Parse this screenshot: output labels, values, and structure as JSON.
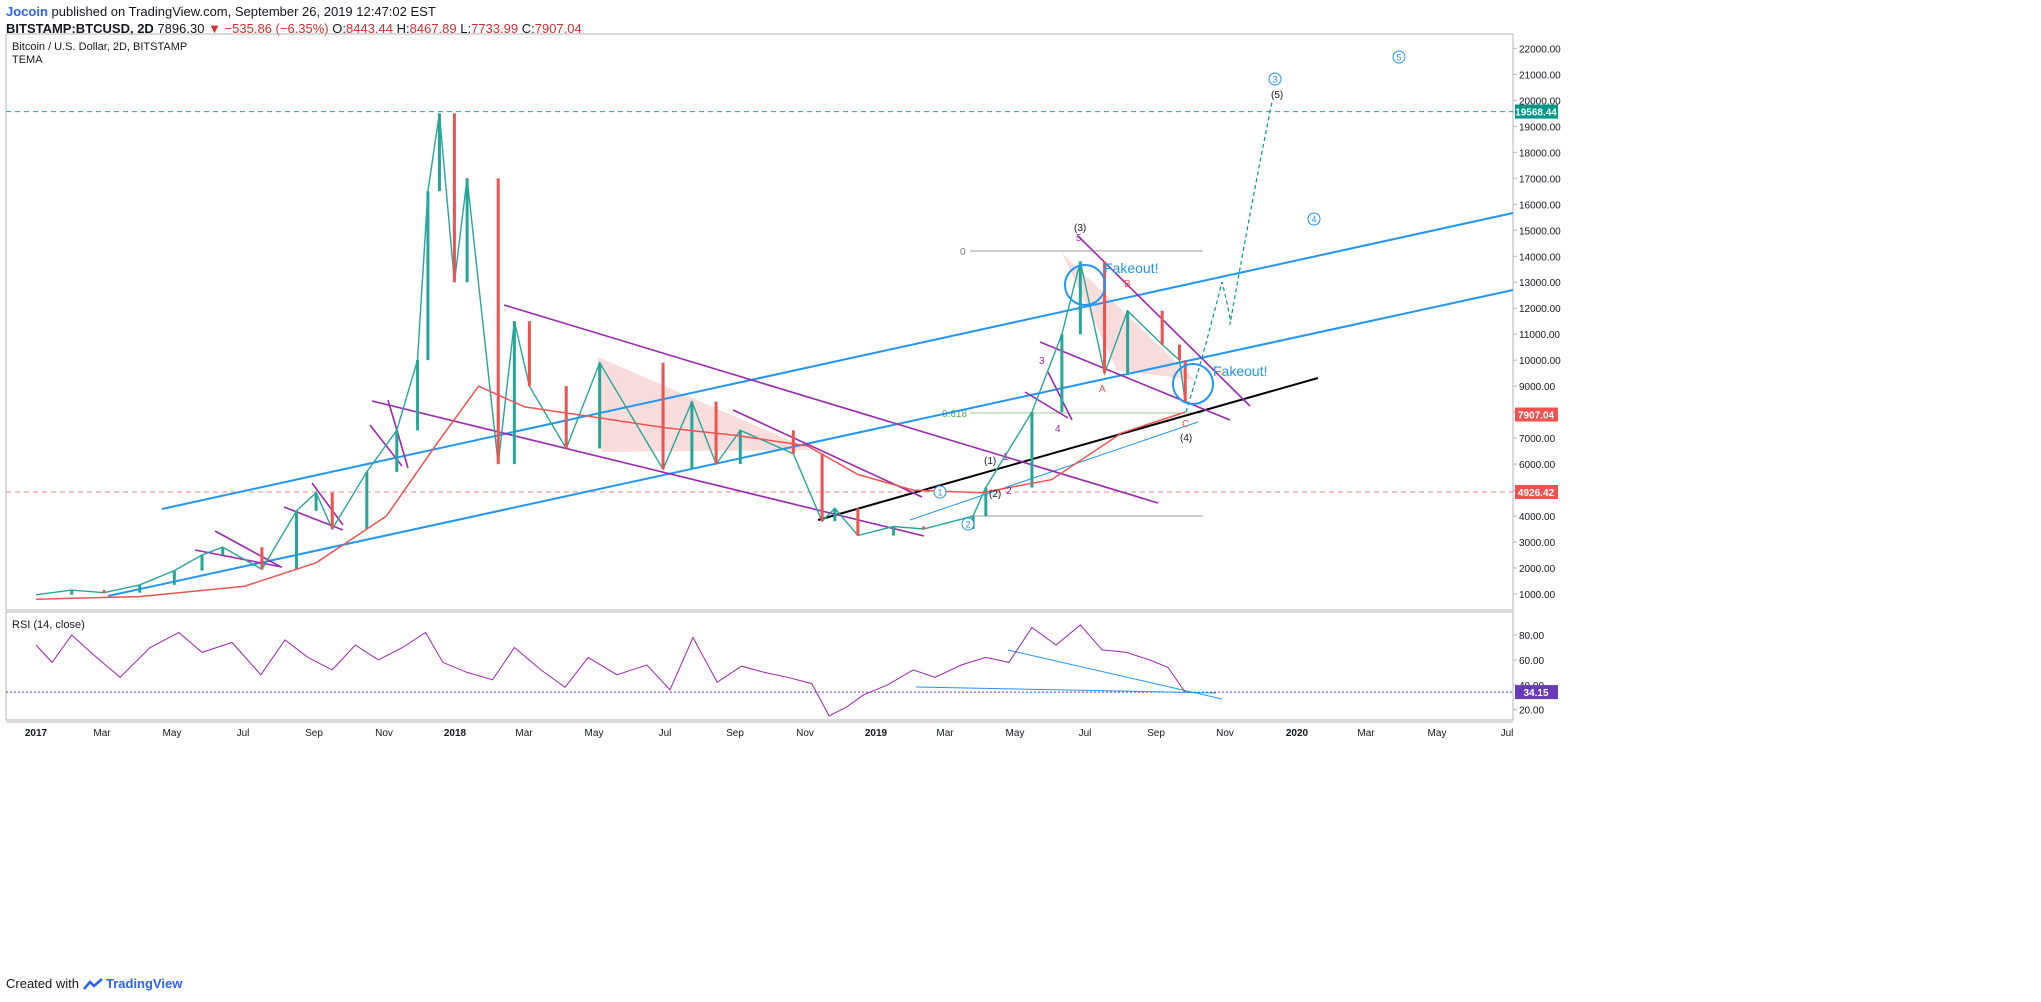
{
  "header": {
    "user": "Jocoin",
    "published_text": "published on TradingView.com, September 26, 2019 12:47:02 EST",
    "symbol": "BITSTAMP:BTCUSD, 2D",
    "last": "7896.30",
    "change": "−535.86 (−6.35%)",
    "o_label": "O:",
    "o": "8443.44",
    "h_label": "H:",
    "h": "8467.89",
    "l_label": "L:",
    "l": "7733.99",
    "c_label": "C:",
    "c": "7907.04"
  },
  "footer": {
    "created_with": "Created with",
    "brand": "TradingView"
  },
  "colors": {
    "up_candle": "#26a69a",
    "down_candle": "#ef5350",
    "tema": "#ef5350",
    "channel": "#2196f3",
    "wedge": "#9c27b0",
    "rsi": "#9c27b0",
    "price_badge": "#ef5350",
    "ath_badge": "#009688",
    "rsi_badge": "#673ab7"
  },
  "chart_data": [
    {
      "type": "candlestick",
      "title": "Bitcoin / U.S. Dollar, 2D, BITSTAMP",
      "indicator": "TEMA",
      "x_axis_labels": [
        "2017",
        "Mar",
        "May",
        "Jul",
        "Sep",
        "Nov",
        "2018",
        "Mar",
        "May",
        "Jul",
        "Sep",
        "Nov",
        "2019",
        "Mar",
        "May",
        "Jul",
        "Sep",
        "Nov",
        "2020",
        "Mar",
        "May",
        "Jul"
      ],
      "y_ticks": [
        "22000.00",
        "21000.00",
        "20000.00",
        "19000.00",
        "18000.00",
        "17000.00",
        "16000.00",
        "15000.00",
        "14000.00",
        "13000.00",
        "12000.00",
        "11000.00",
        "10000.00",
        "9000.00",
        "8000.00",
        "7000.00",
        "6000.00",
        "5000.00",
        "4000.00",
        "3000.00",
        "2000.00",
        "1000.00"
      ],
      "ylim": [
        0,
        22500
      ],
      "price_series": {
        "x": [
          "2017-01-01",
          "2017-02-01",
          "2017-03-01",
          "2017-04-01",
          "2017-05-01",
          "2017-05-25",
          "2017-06-12",
          "2017-07-16",
          "2017-08-15",
          "2017-09-01",
          "2017-09-15",
          "2017-10-15",
          "2017-11-10",
          "2017-11-28",
          "2017-12-07",
          "2017-12-17",
          "2017-12-30",
          "2018-01-10",
          "2018-02-06",
          "2018-02-20",
          "2018-03-05",
          "2018-04-06",
          "2018-05-05",
          "2018-06-29",
          "2018-07-24",
          "2018-08-14",
          "2018-09-04",
          "2018-10-20",
          "2018-11-14",
          "2018-11-25",
          "2018-12-15",
          "2019-01-15",
          "2019-02-10",
          "2019-03-25",
          "2019-04-05",
          "2019-05-15",
          "2019-06-10",
          "2019-06-26",
          "2019-07-17",
          "2019-08-06",
          "2019-09-05",
          "2019-09-20",
          "2019-09-25"
        ],
        "y": [
          970,
          1150,
          1050,
          1350,
          1900,
          2500,
          2800,
          1950,
          4200,
          4900,
          3500,
          5700,
          7300,
          10000,
          16500,
          19500,
          13000,
          17000,
          6000,
          11500,
          9000,
          6600,
          9900,
          5800,
          8400,
          6000,
          7300,
          6400,
          3800,
          4300,
          3250,
          3600,
          3500,
          4000,
          5100,
          8000,
          11000,
          13800,
          9500,
          11900,
          10600,
          10000,
          8400
        ]
      },
      "tema_series": {
        "x": [
          "2017-01-01",
          "2017-04-01",
          "2017-07-01",
          "2017-09-01",
          "2017-11-01",
          "2017-12-15",
          "2018-01-20",
          "2018-03-01",
          "2018-05-01",
          "2018-07-01",
          "2018-09-01",
          "2018-11-01",
          "2018-12-15",
          "2019-02-01",
          "2019-04-01",
          "2019-06-01",
          "2019-08-01",
          "2019-09-25"
        ],
        "y": [
          800,
          900,
          1300,
          2200,
          4000,
          6800,
          9000,
          8200,
          7800,
          7400,
          7100,
          6700,
          5600,
          5000,
          4900,
          5400,
          7200,
          8000
        ]
      },
      "annotations": {
        "price_badge": "7907.04",
        "ath_badge": "19568.44",
        "support_badge": "4926.42",
        "fakeout_1": "Fakeout!",
        "fakeout_2": "Fakeout!",
        "fib_0": "0",
        "fib_0618": "0.618",
        "wave_labels": [
          "(3)",
          "5",
          "3",
          "4",
          "(1)",
          "1",
          "(2)",
          "2",
          "(4)",
          "(5)",
          "A",
          "B",
          "C"
        ],
        "circled_waves": [
          "1",
          "2",
          "3",
          "4",
          "5"
        ]
      }
    },
    {
      "type": "line",
      "title": "RSI (14, close)",
      "y_ticks": [
        "80.00",
        "60.00",
        "40.00",
        "20.00"
      ],
      "ylim": [
        10,
        95
      ],
      "badge": "34.15",
      "series": {
        "x": [
          "2017-01-01",
          "2017-01-15",
          "2017-02-01",
          "2017-02-20",
          "2017-03-15",
          "2017-04-10",
          "2017-05-05",
          "2017-05-25",
          "2017-06-20",
          "2017-07-15",
          "2017-08-05",
          "2017-08-25",
          "2017-09-15",
          "2017-10-05",
          "2017-10-25",
          "2017-11-15",
          "2017-12-05",
          "2017-12-20",
          "2018-01-10",
          "2018-02-01",
          "2018-02-20",
          "2018-03-15",
          "2018-04-05",
          "2018-04-25",
          "2018-05-20",
          "2018-06-15",
          "2018-07-05",
          "2018-07-25",
          "2018-08-15",
          "2018-09-05",
          "2018-09-25",
          "2018-10-15",
          "2018-11-05",
          "2018-11-20",
          "2018-12-05",
          "2018-12-20",
          "2019-01-10",
          "2019-02-01",
          "2019-02-20",
          "2019-03-15",
          "2019-04-05",
          "2019-04-25",
          "2019-05-15",
          "2019-06-05",
          "2019-06-26",
          "2019-07-15",
          "2019-08-05",
          "2019-08-25",
          "2019-09-10",
          "2019-09-25"
        ],
        "y": [
          72,
          58,
          80,
          64,
          46,
          70,
          82,
          66,
          74,
          48,
          76,
          62,
          52,
          72,
          60,
          70,
          82,
          58,
          50,
          44,
          70,
          52,
          38,
          62,
          48,
          56,
          36,
          78,
          42,
          55,
          50,
          46,
          41,
          15,
          22,
          32,
          40,
          52,
          46,
          56,
          62,
          58,
          86,
          72,
          88,
          68,
          66,
          60,
          54,
          34
        ]
      }
    }
  ]
}
